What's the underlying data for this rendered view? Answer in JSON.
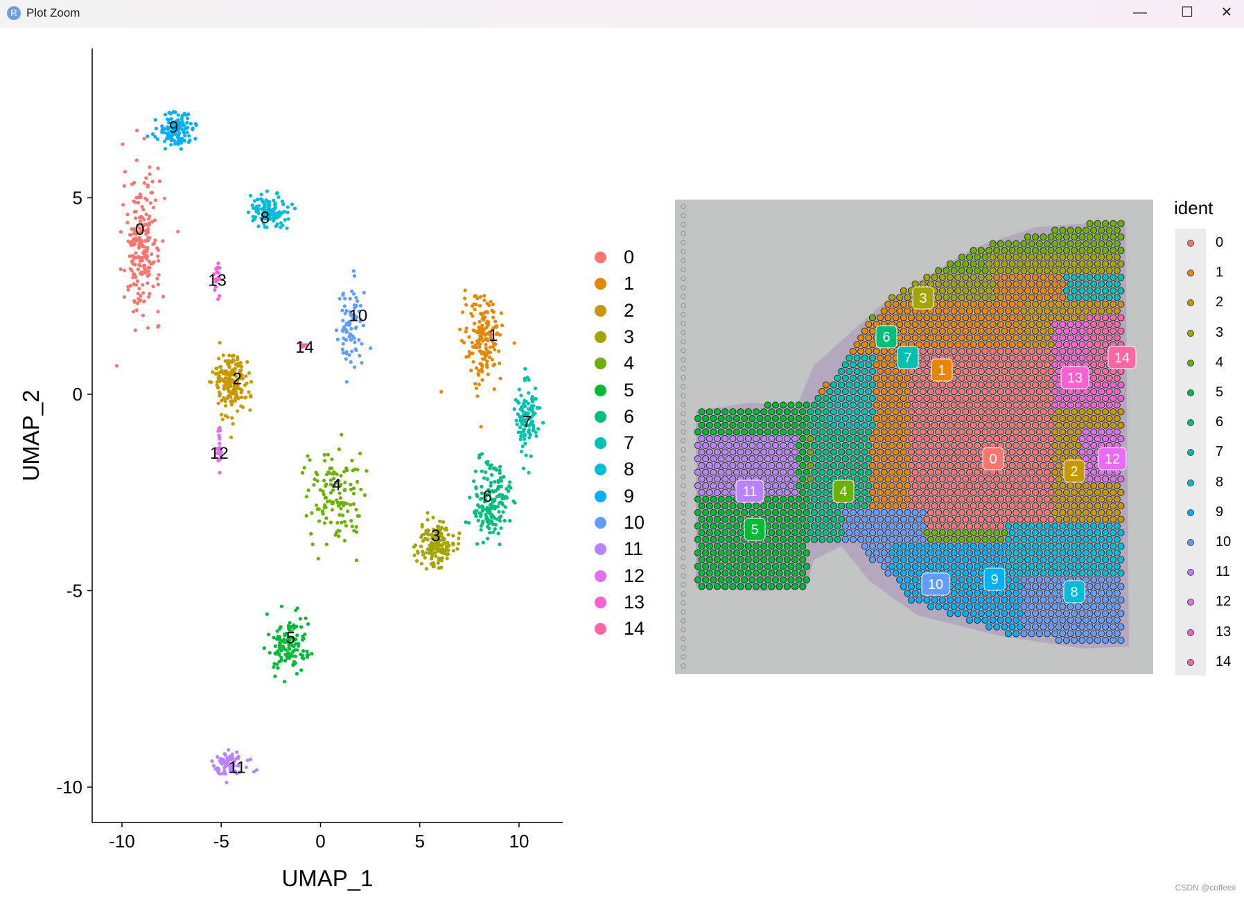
{
  "window": {
    "title": "Plot Zoom",
    "app_icon": "R",
    "minimize": "—",
    "maximize": "☐",
    "close": "✕"
  },
  "watermark": "CSDN @coffeeii",
  "colors": [
    "#F8766D",
    "#E58700",
    "#C99800",
    "#A3A500",
    "#6BB100",
    "#00BA38",
    "#00BF7D",
    "#00C0AF",
    "#00BCD8",
    "#00B0F6",
    "#619CFF",
    "#B983FF",
    "#E76BF3",
    "#FD61D1",
    "#FF67A4"
  ],
  "chart_data": [
    {
      "type": "scatter",
      "title": "",
      "xlabel": "UMAP_1",
      "ylabel": "UMAP_2",
      "xlim": [
        -11.5,
        12.2
      ],
      "ylim": [
        -10.9,
        8.8
      ],
      "xticks": [
        -10,
        -5,
        0,
        5,
        10
      ],
      "yticks": [
        5,
        0,
        -5,
        -10
      ],
      "xtick_labels": [
        "-10",
        "-5",
        "0",
        "5",
        "10"
      ],
      "ytick_labels": [
        "5",
        "0",
        "-5",
        "-10"
      ],
      "legend": {
        "placement": "right",
        "title": "",
        "entries": [
          "0",
          "1",
          "2",
          "3",
          "4",
          "5",
          "6",
          "7",
          "8",
          "9",
          "10",
          "11",
          "12",
          "13",
          "14"
        ]
      },
      "cluster_labels": [
        {
          "label": "0",
          "x": -9.1,
          "y": 4.2
        },
        {
          "label": "1",
          "x": 8.7,
          "y": 1.5
        },
        {
          "label": "2",
          "x": -4.2,
          "y": 0.4
        },
        {
          "label": "3",
          "x": 5.8,
          "y": -3.6
        },
        {
          "label": "4",
          "x": 0.8,
          "y": -2.3
        },
        {
          "label": "5",
          "x": -1.5,
          "y": -6.2
        },
        {
          "label": "6",
          "x": 8.4,
          "y": -2.6
        },
        {
          "label": "7",
          "x": 10.4,
          "y": -0.7
        },
        {
          "label": "8",
          "x": -2.8,
          "y": 4.5
        },
        {
          "label": "9",
          "x": -7.4,
          "y": 6.8
        },
        {
          "label": "10",
          "x": 1.9,
          "y": 2.0
        },
        {
          "label": "11",
          "x": -4.2,
          "y": -9.5
        },
        {
          "label": "12",
          "x": -5.1,
          "y": -1.5
        },
        {
          "label": "13",
          "x": -5.2,
          "y": 2.9
        },
        {
          "label": "14",
          "x": -0.8,
          "y": 1.2
        }
      ],
      "clusters": [
        {
          "id": "0",
          "center": [
            -9.0,
            3.8
          ],
          "spread": [
            0.85,
            1.6
          ],
          "n": 230
        },
        {
          "id": "1",
          "center": [
            8.2,
            1.4
          ],
          "spread": [
            0.9,
            1.0
          ],
          "n": 170
        },
        {
          "id": "2",
          "center": [
            -4.5,
            0.3
          ],
          "spread": [
            0.8,
            0.8
          ],
          "n": 180
        },
        {
          "id": "3",
          "center": [
            5.8,
            -3.8
          ],
          "spread": [
            0.8,
            0.5
          ],
          "n": 150
        },
        {
          "id": "4",
          "center": [
            0.7,
            -2.6
          ],
          "spread": [
            1.3,
            1.1
          ],
          "n": 130
        },
        {
          "id": "5",
          "center": [
            -1.6,
            -6.4
          ],
          "spread": [
            1.0,
            0.6
          ],
          "n": 120
        },
        {
          "id": "6",
          "center": [
            8.6,
            -2.7
          ],
          "spread": [
            0.8,
            0.9
          ],
          "n": 170
        },
        {
          "id": "7",
          "center": [
            10.4,
            -0.6
          ],
          "spread": [
            0.5,
            0.8
          ],
          "n": 110
        },
        {
          "id": "8",
          "center": [
            -2.6,
            4.7
          ],
          "spread": [
            0.9,
            0.4
          ],
          "n": 110
        },
        {
          "id": "9",
          "center": [
            -7.3,
            6.7
          ],
          "spread": [
            1.0,
            0.4
          ],
          "n": 120
        },
        {
          "id": "10",
          "center": [
            1.6,
            1.8
          ],
          "spread": [
            0.6,
            0.9
          ],
          "n": 80
        },
        {
          "id": "11",
          "center": [
            -4.5,
            -9.4
          ],
          "spread": [
            0.8,
            0.3
          ],
          "n": 70
        },
        {
          "id": "12",
          "center": [
            -5.1,
            -1.4
          ],
          "spread": [
            0.1,
            0.5
          ],
          "n": 22
        },
        {
          "id": "13",
          "center": [
            -5.2,
            2.9
          ],
          "spread": [
            0.12,
            0.4
          ],
          "n": 20
        },
        {
          "id": "14",
          "center": [
            -0.9,
            1.25
          ],
          "spread": [
            0.15,
            0.06
          ],
          "n": 10
        }
      ]
    },
    {
      "type": "spatial-scatter",
      "title": "",
      "legend": {
        "placement": "right",
        "title": "ident",
        "entries": [
          "0",
          "1",
          "2",
          "3",
          "4",
          "5",
          "6",
          "7",
          "8",
          "9",
          "10",
          "11",
          "12",
          "13",
          "14"
        ]
      },
      "cluster_labels": [
        "3",
        "6",
        "7",
        "1",
        "14",
        "13",
        "0",
        "12",
        "2",
        "11",
        "4",
        "5",
        "10",
        "9",
        "8"
      ]
    }
  ]
}
